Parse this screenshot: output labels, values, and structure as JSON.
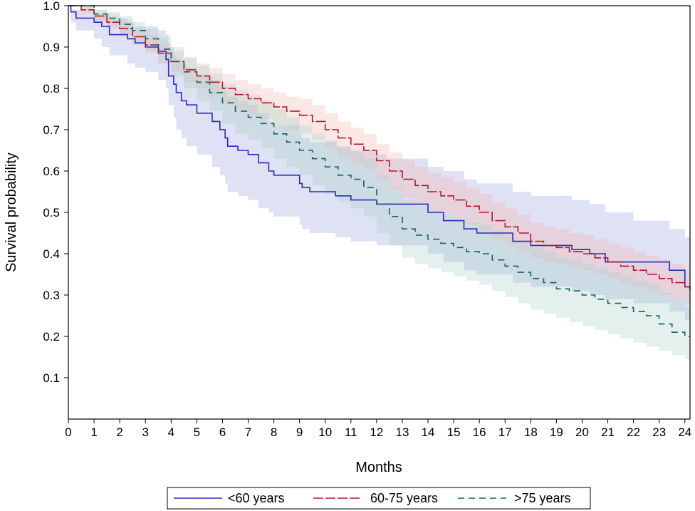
{
  "chart_data": {
    "type": "line",
    "subtype": "kaplan-meier survival curve with confidence bands",
    "title": "",
    "xlabel": "Months",
    "ylabel": "Survival probability",
    "xlim": [
      0,
      24.2
    ],
    "ylim": [
      0.0,
      1.0
    ],
    "grid": false,
    "legend_position": "bottom-center",
    "x_ticks": [
      0,
      1,
      2,
      3,
      4,
      5,
      6,
      7,
      8,
      9,
      10,
      11,
      12,
      13,
      14,
      15,
      16,
      17,
      18,
      19,
      20,
      21,
      22,
      23,
      24
    ],
    "x_tick_labels": [
      "0",
      "1",
      "2",
      "3",
      "4",
      "5",
      "6",
      "7",
      "8",
      "9",
      "10",
      "11",
      "12",
      "13",
      "14",
      "15",
      "16",
      "17",
      "18",
      "19",
      "20",
      "21",
      "22",
      "23",
      "24"
    ],
    "y_ticks": [
      0.1,
      0.2,
      0.3,
      0.4,
      0.5,
      0.6,
      0.7,
      0.8,
      0.9,
      1.0
    ],
    "y_tick_labels": [
      "0.1",
      "0.2",
      "0.3",
      "0.4",
      "0.5",
      "0.6",
      "0.7",
      "0.8",
      "0.9",
      "1.0"
    ],
    "series": [
      {
        "name": "<60 years",
        "color": "#2b2bbd",
        "band_color": "#9aa3dd",
        "dash": "solid",
        "x": [
          0,
          0.1,
          0.3,
          1.0,
          1.3,
          1.6,
          2.3,
          2.6,
          3.0,
          3.5,
          3.8,
          3.9,
          4.1,
          4.2,
          4.4,
          4.6,
          5.0,
          5.6,
          5.9,
          6.1,
          6.2,
          6.6,
          7.0,
          7.4,
          7.8,
          8.0,
          9.0,
          9.1,
          9.4,
          10.4,
          11.0,
          12.0,
          12.4,
          14.0,
          14.6,
          15.4,
          15.9,
          17.3,
          18.0,
          19.6,
          20.3,
          20.9,
          22.0,
          23.4,
          24.0,
          24.2
        ],
        "y": [
          1.0,
          0.985,
          0.97,
          0.96,
          0.95,
          0.93,
          0.92,
          0.91,
          0.9,
          0.89,
          0.87,
          0.83,
          0.81,
          0.79,
          0.77,
          0.76,
          0.74,
          0.72,
          0.7,
          0.68,
          0.66,
          0.65,
          0.64,
          0.62,
          0.6,
          0.59,
          0.57,
          0.56,
          0.55,
          0.54,
          0.53,
          0.52,
          0.52,
          0.5,
          0.48,
          0.46,
          0.45,
          0.43,
          0.42,
          0.41,
          0.4,
          0.38,
          0.38,
          0.36,
          0.32,
          0.32
        ],
        "lower": [
          1.0,
          0.96,
          0.94,
          0.92,
          0.9,
          0.88,
          0.86,
          0.85,
          0.84,
          0.82,
          0.8,
          0.76,
          0.73,
          0.7,
          0.68,
          0.66,
          0.64,
          0.61,
          0.59,
          0.57,
          0.55,
          0.54,
          0.53,
          0.51,
          0.5,
          0.49,
          0.47,
          0.46,
          0.45,
          0.44,
          0.43,
          0.42,
          0.42,
          0.4,
          0.38,
          0.36,
          0.35,
          0.33,
          0.32,
          0.31,
          0.3,
          0.29,
          0.28,
          0.26,
          0.24,
          0.23
        ],
        "upper": [
          1.0,
          0.99,
          0.99,
          0.98,
          0.98,
          0.97,
          0.96,
          0.95,
          0.95,
          0.94,
          0.93,
          0.9,
          0.88,
          0.87,
          0.86,
          0.85,
          0.83,
          0.82,
          0.8,
          0.79,
          0.78,
          0.77,
          0.76,
          0.74,
          0.72,
          0.71,
          0.69,
          0.68,
          0.67,
          0.66,
          0.65,
          0.64,
          0.63,
          0.61,
          0.6,
          0.58,
          0.57,
          0.55,
          0.54,
          0.53,
          0.52,
          0.5,
          0.48,
          0.46,
          0.44,
          0.43
        ]
      },
      {
        "name": "60-75 years",
        "color": "#b5172b",
        "band_color": "#f2b5ae",
        "dash": "long-dash",
        "x": [
          0,
          0.5,
          1.0,
          1.5,
          2.0,
          2.5,
          3.0,
          3.5,
          4.0,
          4.5,
          5.0,
          5.5,
          6.0,
          6.5,
          7.0,
          7.5,
          8.0,
          8.5,
          9.0,
          9.5,
          10.0,
          10.5,
          11.0,
          11.5,
          12.0,
          12.5,
          13.0,
          13.5,
          14.0,
          14.5,
          15.0,
          15.5,
          16.0,
          16.5,
          17.0,
          17.5,
          18.0,
          18.5,
          19.0,
          19.5,
          20.0,
          20.5,
          21.0,
          21.5,
          22.0,
          22.5,
          23.0,
          23.5,
          24.0,
          24.2
        ],
        "y": [
          1.0,
          0.99,
          0.975,
          0.96,
          0.945,
          0.925,
          0.905,
          0.885,
          0.865,
          0.845,
          0.83,
          0.815,
          0.8,
          0.785,
          0.775,
          0.765,
          0.755,
          0.745,
          0.735,
          0.72,
          0.7,
          0.68,
          0.665,
          0.65,
          0.625,
          0.6,
          0.58,
          0.565,
          0.55,
          0.54,
          0.53,
          0.515,
          0.5,
          0.48,
          0.465,
          0.45,
          0.43,
          0.42,
          0.415,
          0.405,
          0.4,
          0.39,
          0.38,
          0.37,
          0.36,
          0.35,
          0.34,
          0.33,
          0.32,
          0.31
        ],
        "lower": [
          1.0,
          0.98,
          0.96,
          0.945,
          0.925,
          0.905,
          0.885,
          0.86,
          0.84,
          0.815,
          0.8,
          0.78,
          0.765,
          0.75,
          0.735,
          0.725,
          0.71,
          0.7,
          0.69,
          0.675,
          0.655,
          0.635,
          0.62,
          0.605,
          0.58,
          0.555,
          0.535,
          0.52,
          0.505,
          0.495,
          0.485,
          0.47,
          0.455,
          0.435,
          0.42,
          0.405,
          0.39,
          0.38,
          0.375,
          0.365,
          0.36,
          0.35,
          0.34,
          0.33,
          0.32,
          0.31,
          0.3,
          0.29,
          0.28,
          0.27
        ],
        "upper": [
          1.0,
          1.0,
          0.99,
          0.98,
          0.965,
          0.945,
          0.93,
          0.91,
          0.89,
          0.875,
          0.86,
          0.85,
          0.835,
          0.82,
          0.81,
          0.8,
          0.79,
          0.78,
          0.775,
          0.76,
          0.74,
          0.72,
          0.705,
          0.69,
          0.665,
          0.645,
          0.625,
          0.61,
          0.595,
          0.585,
          0.575,
          0.56,
          0.545,
          0.525,
          0.51,
          0.495,
          0.475,
          0.465,
          0.46,
          0.45,
          0.445,
          0.435,
          0.425,
          0.415,
          0.405,
          0.395,
          0.385,
          0.375,
          0.36,
          0.355
        ]
      },
      {
        "name": ">75 years",
        "color": "#0f6655",
        "band_color": "#a9cfc8",
        "dash": "dash",
        "x": [
          0,
          0.5,
          1.0,
          1.5,
          2.0,
          2.5,
          3.0,
          3.5,
          4.0,
          4.5,
          5.0,
          5.5,
          6.0,
          6.5,
          7.0,
          7.5,
          8.0,
          8.5,
          9.0,
          9.5,
          10.0,
          10.5,
          11.0,
          11.5,
          12.0,
          12.5,
          13.0,
          13.5,
          14.0,
          14.5,
          15.0,
          15.5,
          16.0,
          16.5,
          17.0,
          17.5,
          18.0,
          18.5,
          19.0,
          19.5,
          20.0,
          20.5,
          21.0,
          21.5,
          22.0,
          22.5,
          23.0,
          23.5,
          24.0,
          24.2
        ],
        "y": [
          1.0,
          1.0,
          0.98,
          0.97,
          0.955,
          0.94,
          0.92,
          0.895,
          0.865,
          0.84,
          0.815,
          0.79,
          0.765,
          0.745,
          0.73,
          0.715,
          0.69,
          0.67,
          0.65,
          0.63,
          0.61,
          0.59,
          0.58,
          0.56,
          0.52,
          0.49,
          0.46,
          0.445,
          0.435,
          0.425,
          0.415,
          0.405,
          0.4,
          0.385,
          0.37,
          0.355,
          0.34,
          0.33,
          0.315,
          0.31,
          0.3,
          0.29,
          0.28,
          0.27,
          0.26,
          0.25,
          0.23,
          0.21,
          0.2,
          0.2
        ],
        "lower": [
          1.0,
          0.99,
          0.965,
          0.95,
          0.93,
          0.91,
          0.89,
          0.86,
          0.83,
          0.8,
          0.77,
          0.745,
          0.715,
          0.69,
          0.675,
          0.655,
          0.63,
          0.61,
          0.59,
          0.565,
          0.545,
          0.525,
          0.51,
          0.49,
          0.45,
          0.42,
          0.39,
          0.375,
          0.365,
          0.355,
          0.345,
          0.335,
          0.325,
          0.31,
          0.295,
          0.28,
          0.265,
          0.255,
          0.245,
          0.235,
          0.225,
          0.215,
          0.205,
          0.195,
          0.185,
          0.175,
          0.165,
          0.155,
          0.145,
          0.14
        ],
        "upper": [
          1.0,
          1.0,
          0.99,
          0.985,
          0.975,
          0.96,
          0.945,
          0.925,
          0.9,
          0.875,
          0.855,
          0.835,
          0.81,
          0.795,
          0.785,
          0.77,
          0.75,
          0.73,
          0.71,
          0.69,
          0.675,
          0.655,
          0.645,
          0.63,
          0.59,
          0.56,
          0.53,
          0.515,
          0.505,
          0.495,
          0.485,
          0.475,
          0.47,
          0.455,
          0.44,
          0.43,
          0.415,
          0.405,
          0.39,
          0.385,
          0.375,
          0.365,
          0.355,
          0.345,
          0.335,
          0.325,
          0.305,
          0.29,
          0.27,
          0.27
        ]
      }
    ]
  }
}
